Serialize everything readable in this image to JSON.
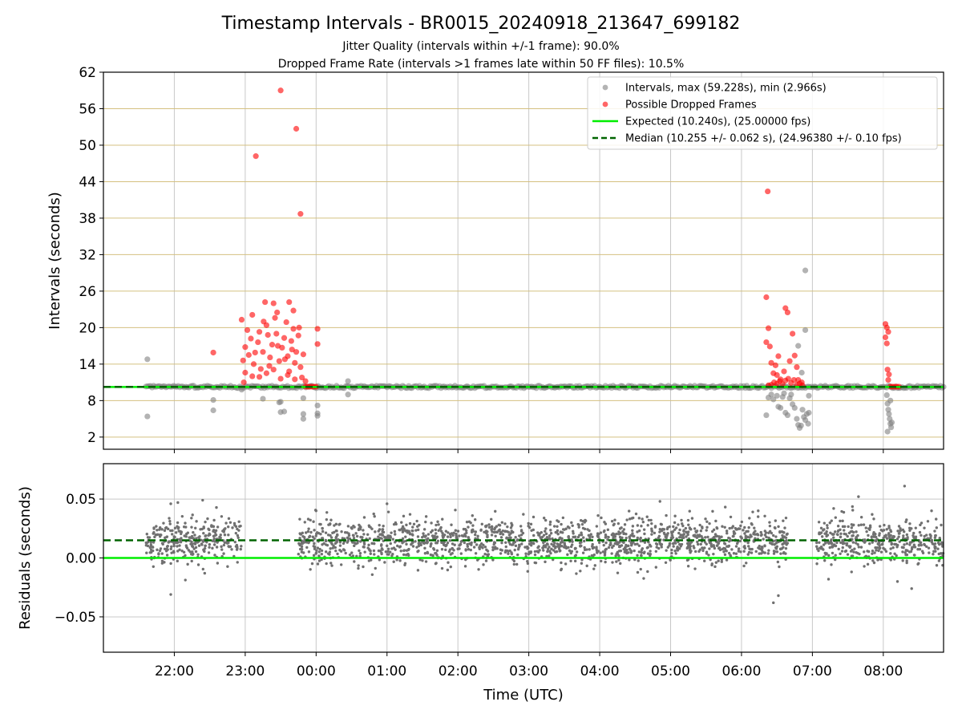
{
  "figure": {
    "title": "Timestamp Intervals - BR0015_20240918_213647_699182",
    "subtitle_1": "Jitter Quality (intervals within +/-1 frame): 90.0%",
    "subtitle_2": "Dropped Frame Rate (intervals >1 frames late within 50 FF files): 10.5%",
    "x_label": "Time (UTC)"
  },
  "colors": {
    "intervals": "#808080",
    "dropped": "#ff0000",
    "expected": "#00ee00",
    "median": "#006400",
    "grid_top": "#d4c080",
    "grid_bottom": "#c8c8c8"
  },
  "chart_data": [
    {
      "type": "scatter",
      "name": "intervals-panel",
      "ylabel": "Intervals (seconds)",
      "x_unit": "hours since 21:00 UTC (hour labels shown as HH:MM)",
      "xlim": [
        0.0,
        11.85
      ],
      "ylim": [
        0,
        62
      ],
      "yticks": [
        2,
        8,
        14,
        20,
        26,
        32,
        38,
        44,
        50,
        56,
        62
      ],
      "grid": true,
      "legend_position": "top-right",
      "legend": [
        "Intervals, max (59.228s), min (2.966s)",
        "Possible Dropped Frames",
        "Expected (10.240s), (25.00000 fps)",
        "Median (10.255 +/- 0.062 s), (24.96380 +/- 0.10 fps)"
      ],
      "lines": {
        "expected": 10.24,
        "median": 10.255
      },
      "intervals_band": {
        "x_start": 0.6,
        "x_end": 11.85,
        "y": 10.25
      },
      "series": [
        {
          "name": "Intervals",
          "points": [
            [
              0.62,
              14.8
            ],
            [
              0.62,
              5.4
            ],
            [
              1.55,
              8.1
            ],
            [
              1.55,
              6.4
            ],
            [
              1.95,
              9.8
            ],
            [
              2.25,
              8.3
            ],
            [
              2.48,
              7.7
            ],
            [
              2.5,
              6.1
            ],
            [
              2.55,
              6.2
            ],
            [
              2.5,
              7.8
            ],
            [
              2.82,
              5.0
            ],
            [
              2.82,
              5.8
            ],
            [
              2.82,
              8.4
            ],
            [
              3.02,
              5.5
            ],
            [
              3.02,
              7.2
            ],
            [
              3.02,
              5.9
            ],
            [
              3.45,
              11.2
            ],
            [
              3.45,
              9.0
            ],
            [
              9.35,
              5.6
            ],
            [
              9.38,
              8.5
            ],
            [
              9.42,
              9.0
            ],
            [
              9.45,
              8.2
            ],
            [
              9.5,
              8.8
            ],
            [
              9.52,
              7.0
            ],
            [
              9.55,
              6.8
            ],
            [
              9.58,
              8.6
            ],
            [
              9.6,
              9.2
            ],
            [
              9.62,
              6.0
            ],
            [
              9.65,
              5.6
            ],
            [
              9.68,
              8.4
            ],
            [
              9.7,
              9.0
            ],
            [
              9.72,
              7.4
            ],
            [
              9.75,
              6.8
            ],
            [
              9.78,
              5.0
            ],
            [
              9.8,
              4.0
            ],
            [
              9.82,
              3.5
            ],
            [
              9.84,
              3.9
            ],
            [
              9.86,
              6.5
            ],
            [
              9.88,
              5.3
            ],
            [
              9.9,
              4.8
            ],
            [
              9.92,
              5.8
            ],
            [
              9.94,
              4.2
            ],
            [
              9.8,
              17.0
            ],
            [
              9.85,
              12.6
            ],
            [
              9.9,
              29.4
            ],
            [
              9.9,
              19.6
            ],
            [
              9.95,
              8.8
            ],
            [
              9.95,
              6.0
            ],
            [
              11.05,
              8.9
            ],
            [
              11.06,
              7.5
            ],
            [
              11.07,
              6.5
            ],
            [
              11.08,
              5.8
            ],
            [
              11.09,
              5.0
            ],
            [
              11.1,
              4.2
            ],
            [
              11.11,
              3.6
            ],
            [
              11.06,
              2.9
            ],
            [
              11.12,
              4.4
            ],
            [
              11.1,
              8.0
            ]
          ]
        },
        {
          "name": "Possible Dropped Frames",
          "points": [
            [
              1.55,
              15.9
            ],
            [
              1.95,
              21.3
            ],
            [
              1.98,
              11.0
            ],
            [
              2.1,
              22.1
            ],
            [
              2.15,
              48.2
            ],
            [
              2.28,
              24.2
            ],
            [
              2.4,
              24.0
            ],
            [
              2.45,
              22.5
            ],
            [
              2.5,
              59.0
            ],
            [
              2.62,
              24.2
            ],
            [
              2.68,
              22.8
            ],
            [
              2.72,
              52.7
            ],
            [
              2.78,
              38.7
            ],
            [
              2.0,
              16.8
            ],
            [
              2.05,
              15.5
            ],
            [
              2.08,
              18.2
            ],
            [
              2.12,
              14.0
            ],
            [
              2.18,
              17.6
            ],
            [
              2.2,
              19.3
            ],
            [
              2.22,
              13.2
            ],
            [
              2.25,
              16.0
            ],
            [
              2.3,
              20.4
            ],
            [
              2.32,
              18.8
            ],
            [
              2.35,
              15.1
            ],
            [
              2.38,
              17.2
            ],
            [
              2.42,
              21.6
            ],
            [
              2.44,
              19.0
            ],
            [
              2.48,
              14.5
            ],
            [
              2.52,
              16.7
            ],
            [
              2.55,
              18.3
            ],
            [
              2.58,
              20.9
            ],
            [
              2.6,
              15.3
            ],
            [
              2.62,
              12.8
            ],
            [
              2.65,
              17.8
            ],
            [
              2.68,
              19.8
            ],
            [
              2.7,
              14.2
            ],
            [
              2.72,
              16.0
            ],
            [
              2.75,
              18.7
            ],
            [
              2.78,
              13.5
            ],
            [
              2.8,
              11.8
            ],
            [
              2.82,
              15.6
            ],
            [
              2.85,
              11.2
            ],
            [
              2.0,
              12.6
            ],
            [
              2.1,
              12.0
            ],
            [
              2.2,
              11.9
            ],
            [
              2.3,
              12.5
            ],
            [
              2.4,
              13.1
            ],
            [
              2.5,
              11.6
            ],
            [
              2.6,
              12.2
            ],
            [
              2.7,
              11.5
            ],
            [
              1.97,
              14.6
            ],
            [
              2.03,
              19.6
            ],
            [
              2.14,
              15.9
            ],
            [
              2.26,
              21.0
            ],
            [
              2.34,
              13.7
            ],
            [
              2.46,
              17.0
            ],
            [
              2.56,
              14.8
            ],
            [
              2.66,
              16.4
            ],
            [
              2.76,
              20.0
            ],
            [
              2.85,
              10.3
            ],
            [
              2.88,
              10.3
            ],
            [
              2.91,
              10.3
            ],
            [
              2.94,
              10.3
            ],
            [
              2.97,
              10.3
            ],
            [
              3.0,
              10.3
            ],
            [
              3.02,
              19.8
            ],
            [
              3.02,
              17.3
            ],
            [
              9.37,
              42.4
            ],
            [
              9.35,
              25.0
            ],
            [
              9.38,
              19.9
            ],
            [
              9.35,
              17.6
            ],
            [
              9.4,
              16.9
            ],
            [
              9.42,
              14.2
            ],
            [
              9.45,
              12.5
            ],
            [
              9.48,
              13.8
            ],
            [
              9.5,
              12.2
            ],
            [
              9.52,
              15.3
            ],
            [
              9.55,
              11.5
            ],
            [
              9.6,
              12.8
            ],
            [
              9.62,
              23.2
            ],
            [
              9.65,
              22.5
            ],
            [
              9.68,
              14.5
            ],
            [
              9.72,
              19.0
            ],
            [
              9.75,
              15.4
            ],
            [
              9.78,
              13.5
            ],
            [
              9.8,
              11.4
            ],
            [
              9.85,
              11.0
            ],
            [
              9.38,
              10.5
            ],
            [
              9.42,
              10.6
            ],
            [
              9.46,
              11.0
            ],
            [
              9.5,
              10.8
            ],
            [
              9.54,
              11.2
            ],
            [
              9.58,
              10.7
            ],
            [
              9.62,
              11.3
            ],
            [
              9.66,
              11.6
            ],
            [
              9.7,
              10.9
            ],
            [
              9.74,
              11.4
            ],
            [
              9.78,
              10.6
            ],
            [
              9.82,
              10.8
            ],
            [
              9.86,
              10.5
            ],
            [
              11.03,
              20.6
            ],
            [
              11.05,
              20.0
            ],
            [
              11.03,
              18.4
            ],
            [
              11.07,
              19.3
            ],
            [
              11.05,
              17.4
            ],
            [
              11.06,
              13.1
            ],
            [
              11.08,
              12.3
            ],
            [
              11.07,
              11.4
            ],
            [
              11.1,
              10.3
            ],
            [
              11.13,
              10.3
            ],
            [
              11.16,
              10.3
            ],
            [
              11.19,
              10.3
            ],
            [
              11.22,
              10.3
            ]
          ]
        }
      ]
    },
    {
      "type": "scatter",
      "name": "residuals-panel",
      "ylabel": "Residuals (seconds)",
      "xlim": [
        0.0,
        11.85
      ],
      "ylim": [
        -0.08,
        0.08
      ],
      "yticks": [
        -0.05,
        0.0,
        0.05
      ],
      "ytick_labels": [
        "−0.05",
        "0.00",
        "0.05"
      ],
      "xticks": [
        1,
        2,
        3,
        4,
        5,
        6,
        7,
        8,
        9,
        10,
        11
      ],
      "xtick_labels": [
        "22:00",
        "23:00",
        "00:00",
        "01:00",
        "02:00",
        "03:00",
        "04:00",
        "05:00",
        "06:00",
        "07:00",
        "08:00"
      ],
      "grid": true,
      "lines": {
        "expected": 0.0,
        "median": 0.015
      },
      "residual_distribution": {
        "center": 0.014,
        "spread": 0.0095,
        "segments": [
          [
            0.6,
            1.95
          ],
          [
            2.75,
            9.65
          ],
          [
            10.05,
            11.85
          ]
        ]
      },
      "residual_outliers": [
        [
          0.95,
          -0.031
        ],
        [
          0.95,
          0.046
        ],
        [
          1.05,
          0.047
        ],
        [
          1.4,
          0.049
        ],
        [
          9.45,
          -0.038
        ],
        [
          9.52,
          -0.032
        ],
        [
          11.3,
          0.061
        ],
        [
          11.2,
          -0.02
        ],
        [
          11.4,
          -0.026
        ],
        [
          10.65,
          0.052
        ],
        [
          4.0,
          0.046
        ],
        [
          7.85,
          0.048
        ],
        [
          3.0,
          0.04
        ],
        [
          10.3,
          0.042
        ]
      ]
    }
  ]
}
